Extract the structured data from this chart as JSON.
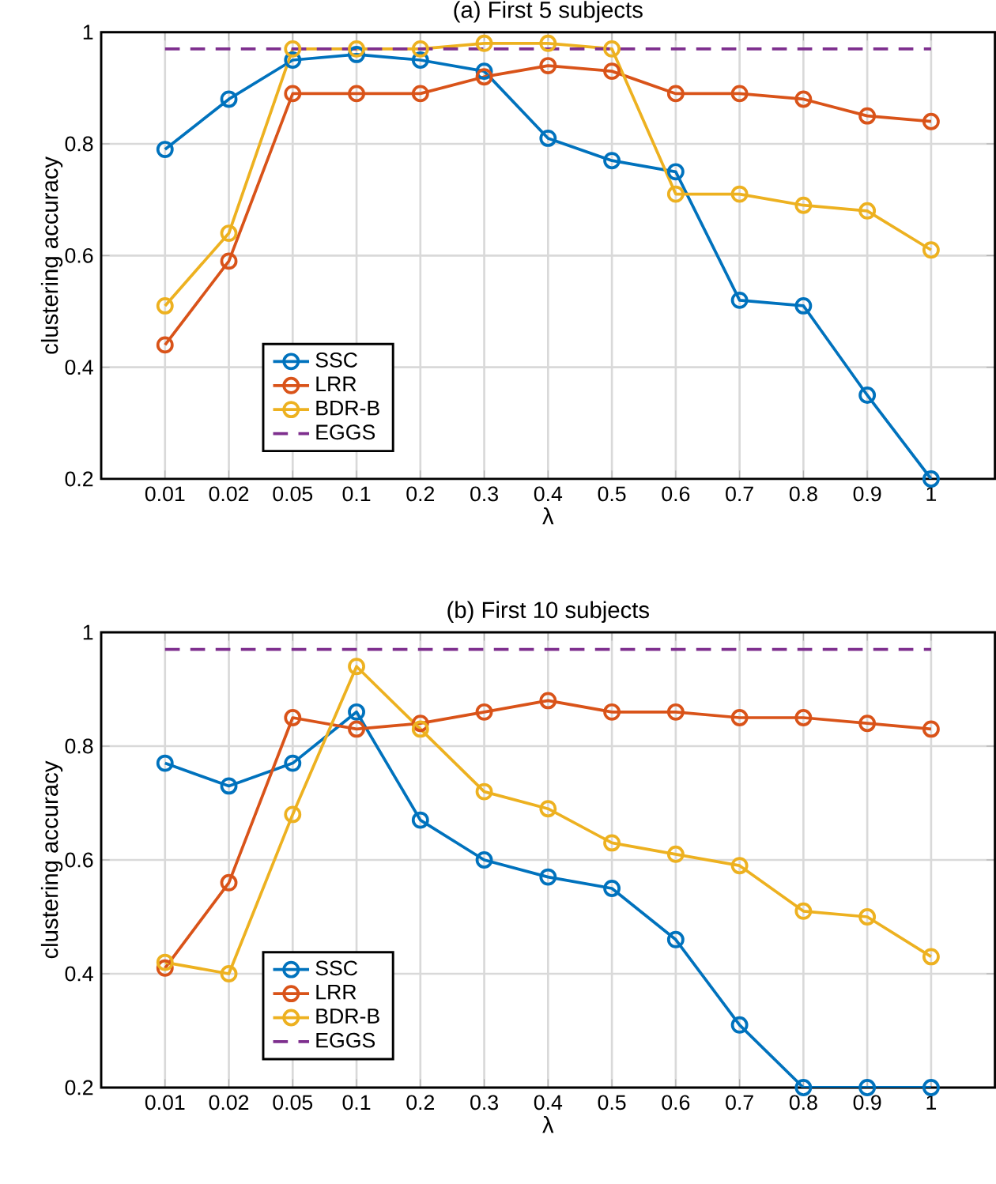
{
  "chart_data": [
    {
      "type": "line",
      "title": "(a) First 5 subjects",
      "xlabel": "λ",
      "ylabel": "clustering accuracy",
      "categories": [
        "0.01",
        "0.02",
        "0.05",
        "0.1",
        "0.2",
        "0.3",
        "0.4",
        "0.5",
        "0.6",
        "0.7",
        "0.8",
        "0.9",
        "1"
      ],
      "series": [
        {
          "name": "SSC",
          "color": "#0072bd",
          "values": [
            0.79,
            0.88,
            0.95,
            0.96,
            0.95,
            0.93,
            0.81,
            0.77,
            0.75,
            0.52,
            0.51,
            0.35,
            0.2
          ]
        },
        {
          "name": "LRR",
          "color": "#d95319",
          "values": [
            0.44,
            0.59,
            0.89,
            0.89,
            0.89,
            0.92,
            0.94,
            0.93,
            0.89,
            0.89,
            0.88,
            0.85,
            0.84
          ]
        },
        {
          "name": "BDR-B",
          "color": "#edb120",
          "values": [
            0.51,
            0.64,
            0.97,
            0.97,
            0.97,
            0.98,
            0.98,
            0.97,
            0.71,
            0.71,
            0.69,
            0.68,
            0.61
          ]
        },
        {
          "name": "EGGS",
          "color": "#7e2f8e",
          "marker": "none",
          "line_style": "dashed",
          "values": [
            0.97,
            0.97,
            0.97,
            0.97,
            0.97,
            0.97,
            0.97,
            0.97,
            0.97,
            0.97,
            0.97,
            0.97,
            0.97
          ]
        }
      ],
      "ylim": [
        0.2,
        1
      ],
      "yticks": [
        0.2,
        0.4,
        0.6,
        0.8,
        1
      ],
      "grid": true,
      "legend": "bottom left",
      "marker": "circle",
      "line_style": "solid"
    },
    {
      "type": "line",
      "title": "(b) First 10 subjects",
      "xlabel": "λ",
      "ylabel": "clustering accuracy",
      "categories": [
        "0.01",
        "0.02",
        "0.05",
        "0.1",
        "0.2",
        "0.3",
        "0.4",
        "0.5",
        "0.6",
        "0.7",
        "0.8",
        "0.9",
        "1"
      ],
      "series": [
        {
          "name": "SSC",
          "color": "#0072bd",
          "values": [
            0.77,
            0.73,
            0.77,
            0.86,
            0.67,
            0.6,
            0.57,
            0.55,
            0.46,
            0.31,
            0.2,
            0.2,
            0.2
          ]
        },
        {
          "name": "LRR",
          "color": "#d95319",
          "values": [
            0.41,
            0.56,
            0.85,
            0.83,
            0.84,
            0.86,
            0.88,
            0.86,
            0.86,
            0.85,
            0.85,
            0.84,
            0.83
          ]
        },
        {
          "name": "BDR-B",
          "color": "#edb120",
          "values": [
            0.42,
            0.4,
            0.68,
            0.94,
            0.83,
            0.72,
            0.69,
            0.63,
            0.61,
            0.59,
            0.51,
            0.5,
            0.43
          ]
        },
        {
          "name": "EGGS",
          "color": "#7e2f8e",
          "marker": "none",
          "line_style": "dashed",
          "values": [
            0.97,
            0.97,
            0.97,
            0.97,
            0.97,
            0.97,
            0.97,
            0.97,
            0.97,
            0.97,
            0.97,
            0.97,
            0.97
          ]
        }
      ],
      "ylim": [
        0.2,
        1
      ],
      "yticks": [
        0.2,
        0.4,
        0.6,
        0.8,
        1
      ],
      "grid": true,
      "legend": "bottom left",
      "marker": "circle",
      "line_style": "solid"
    }
  ]
}
